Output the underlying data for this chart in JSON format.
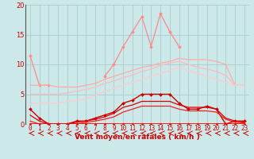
{
  "background_color": "#cce8e8",
  "grid_color": "#aacccc",
  "x_labels": [
    "0",
    "1",
    "2",
    "3",
    "4",
    "5",
    "6",
    "7",
    "8",
    "9",
    "10",
    "11",
    "12",
    "13",
    "14",
    "15",
    "16",
    "17",
    "18",
    "19",
    "20",
    "21",
    "22",
    "23"
  ],
  "xlabel": "Vent moyen/en rafales ( km/h )",
  "ylim": [
    0,
    20
  ],
  "yticks": [
    0,
    5,
    10,
    15,
    20
  ],
  "series": [
    {
      "name": "peaked_light",
      "color": "#ff8888",
      "linewidth": 0.9,
      "marker": "D",
      "markersize": 2.0,
      "y": [
        11.5,
        6.5,
        6.5,
        null,
        null,
        null,
        null,
        null,
        8.0,
        10.0,
        13.0,
        15.5,
        18.0,
        13.0,
        18.5,
        15.5,
        13.0,
        null,
        null,
        null,
        null,
        null,
        null,
        null
      ]
    },
    {
      "name": "upper_band1",
      "color": "#ffaaaa",
      "linewidth": 0.9,
      "marker": null,
      "y": [
        6.5,
        6.5,
        6.5,
        6.2,
        6.2,
        6.2,
        6.5,
        6.8,
        7.5,
        8.0,
        8.5,
        9.0,
        9.5,
        9.8,
        10.2,
        10.5,
        11.0,
        10.8,
        10.8,
        10.8,
        10.5,
        10.0,
        6.5,
        6.5
      ]
    },
    {
      "name": "upper_band2",
      "color": "#ffbbbb",
      "linewidth": 0.9,
      "marker": null,
      "y": [
        5.0,
        5.0,
        5.0,
        5.0,
        5.2,
        5.5,
        5.8,
        6.2,
        6.8,
        7.2,
        7.8,
        8.2,
        8.8,
        9.2,
        9.8,
        10.2,
        10.5,
        10.0,
        9.5,
        9.2,
        8.8,
        8.2,
        6.5,
        6.5
      ]
    },
    {
      "name": "upper_band3",
      "color": "#ffcccc",
      "linewidth": 0.9,
      "marker": null,
      "y": [
        3.5,
        3.5,
        3.5,
        3.5,
        3.8,
        4.0,
        4.2,
        4.8,
        5.5,
        6.0,
        6.5,
        7.0,
        7.5,
        8.0,
        8.5,
        9.0,
        9.5,
        9.0,
        8.5,
        8.0,
        7.5,
        7.0,
        6.5,
        6.5
      ]
    },
    {
      "name": "dark_peaked",
      "color": "#cc0000",
      "linewidth": 1.0,
      "marker": "D",
      "markersize": 2.0,
      "y": [
        2.5,
        1.0,
        0.0,
        0.0,
        0.0,
        0.5,
        0.5,
        1.0,
        1.5,
        2.0,
        3.5,
        4.0,
        5.0,
        5.0,
        5.0,
        5.0,
        3.5,
        2.5,
        2.5,
        3.0,
        2.5,
        0.0,
        0.5,
        0.5
      ]
    },
    {
      "name": "dark_band1",
      "color": "#dd0000",
      "linewidth": 0.9,
      "marker": null,
      "y": [
        1.5,
        0.5,
        0.0,
        0.0,
        0.0,
        0.3,
        0.5,
        0.8,
        1.2,
        1.8,
        2.8,
        3.2,
        3.8,
        3.8,
        3.8,
        3.8,
        3.2,
        2.8,
        2.8,
        2.8,
        2.5,
        1.0,
        0.5,
        0.3
      ]
    },
    {
      "name": "dark_band2",
      "color": "#ee2222",
      "linewidth": 0.9,
      "marker": null,
      "y": [
        0.5,
        0.0,
        0.0,
        0.0,
        0.0,
        0.0,
        0.3,
        0.5,
        0.8,
        1.2,
        2.0,
        2.5,
        3.0,
        3.0,
        3.0,
        3.0,
        2.5,
        2.2,
        2.2,
        2.2,
        2.0,
        0.8,
        0.3,
        0.2
      ]
    },
    {
      "name": "baseline",
      "color": "#ff0000",
      "linewidth": 1.2,
      "marker": "D",
      "markersize": 1.5,
      "y": [
        0.0,
        0.0,
        0.0,
        0.0,
        0.0,
        0.0,
        0.0,
        0.0,
        0.0,
        0.0,
        0.0,
        0.0,
        0.0,
        0.0,
        0.0,
        0.0,
        0.0,
        0.0,
        0.0,
        0.0,
        0.0,
        0.0,
        0.0,
        0.0
      ]
    }
  ],
  "tick_fontsize": 5.5,
  "xlabel_fontsize": 6.5,
  "arrow_color": "#cc0000"
}
